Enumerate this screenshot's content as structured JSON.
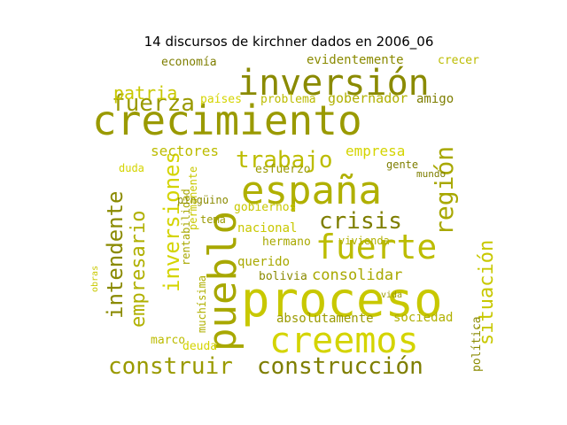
{
  "chart_data": {
    "type": "wordcloud",
    "title": "14 discursos de kirchner dados en 2006_06",
    "palette": [
      "#9a9a00",
      "#c8c800",
      "#a8a800",
      "#b0b000",
      "#8a8a00",
      "#d4d400",
      "#bcbc00",
      "#7e7e00"
    ],
    "words": [
      {
        "text": "crecimiento",
        "weight": 100
      },
      {
        "text": "proceso",
        "weight": 92
      },
      {
        "text": "pueblo",
        "weight": 88
      },
      {
        "text": "españa",
        "weight": 78
      },
      {
        "text": "inversión",
        "weight": 74
      },
      {
        "text": "creemos",
        "weight": 72
      },
      {
        "text": "fuerte",
        "weight": 68
      },
      {
        "text": "construcción",
        "weight": 56
      },
      {
        "text": "construir",
        "weight": 52
      },
      {
        "text": "situación",
        "weight": 50
      },
      {
        "text": "región",
        "weight": 48
      },
      {
        "text": "empresario",
        "weight": 46
      },
      {
        "text": "intendente",
        "weight": 44
      },
      {
        "text": "inversiones",
        "weight": 42
      },
      {
        "text": "trabajo",
        "weight": 40
      },
      {
        "text": "crisis",
        "weight": 38
      },
      {
        "text": "fuerza",
        "weight": 36
      },
      {
        "text": "patria",
        "weight": 32
      },
      {
        "text": "consolidar",
        "weight": 30
      },
      {
        "text": "gobernador",
        "weight": 27
      },
      {
        "text": "política",
        "weight": 25
      },
      {
        "text": "empresa",
        "weight": 24
      },
      {
        "text": "sectores",
        "weight": 23
      },
      {
        "text": "economía",
        "weight": 22
      },
      {
        "text": "absolutamente",
        "weight": 22
      },
      {
        "text": "nacional",
        "weight": 21
      },
      {
        "text": "querido",
        "weight": 20
      },
      {
        "text": "sociedad",
        "weight": 20
      },
      {
        "text": "evidentemente",
        "weight": 19
      },
      {
        "text": "países",
        "weight": 19
      },
      {
        "text": "problema",
        "weight": 19
      },
      {
        "text": "amigo",
        "weight": 18
      },
      {
        "text": "esfuerzo",
        "weight": 17
      },
      {
        "text": "gobiernos",
        "weight": 17
      },
      {
        "text": "hermano",
        "weight": 17
      },
      {
        "text": "vivienda",
        "weight": 16
      },
      {
        "text": "bolivia",
        "weight": 16
      },
      {
        "text": "deuda",
        "weight": 16
      },
      {
        "text": "marco",
        "weight": 16
      },
      {
        "text": "gente",
        "weight": 15
      },
      {
        "text": "tema",
        "weight": 15
      },
      {
        "text": "permanente",
        "weight": 14
      },
      {
        "text": "rentabilidad",
        "weight": 14
      },
      {
        "text": "muchísima",
        "weight": 14
      },
      {
        "text": "pingüino",
        "weight": 13
      },
      {
        "text": "duda",
        "weight": 13
      },
      {
        "text": "crecer",
        "weight": 12
      },
      {
        "text": "mundo",
        "weight": 11
      },
      {
        "text": "vida",
        "weight": 10
      },
      {
        "text": "obras",
        "weight": 10
      }
    ]
  }
}
